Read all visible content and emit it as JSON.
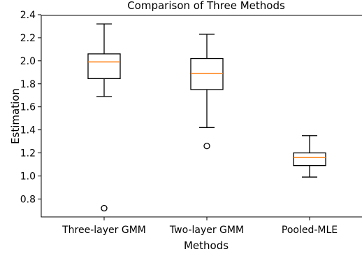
{
  "chart_data": {
    "type": "boxplot",
    "title": "Comparison of Three Methods",
    "xlabel": "Methods",
    "ylabel": "Estimation",
    "ylim": [
      0.65,
      2.4
    ],
    "yticks": [
      0.8,
      1.0,
      1.2,
      1.4,
      1.6,
      1.8,
      2.0,
      2.2,
      2.4
    ],
    "ytick_labels": [
      "0.8",
      "1.0",
      "1.2",
      "1.4",
      "1.6",
      "1.8",
      "2.0",
      "2.2",
      "2.4"
    ],
    "categories": [
      "Three-layer GMM",
      "Two-layer GMM",
      "Pooled-MLE"
    ],
    "boxes": [
      {
        "whisker_low": 1.69,
        "q1": 1.845,
        "median": 1.99,
        "q3": 2.06,
        "whisker_high": 2.32,
        "outliers": [
          0.72
        ]
      },
      {
        "whisker_low": 1.42,
        "q1": 1.75,
        "median": 1.89,
        "q3": 2.02,
        "whisker_high": 2.23,
        "outliers": [
          1.26
        ]
      },
      {
        "whisker_low": 0.99,
        "q1": 1.09,
        "median": 1.16,
        "q3": 1.2,
        "whisker_high": 1.35,
        "outliers": []
      }
    ],
    "colors": {
      "box": "#000000",
      "median": "#ff7f0e",
      "outlier": "#000000"
    },
    "grid": false,
    "legend": "none"
  }
}
